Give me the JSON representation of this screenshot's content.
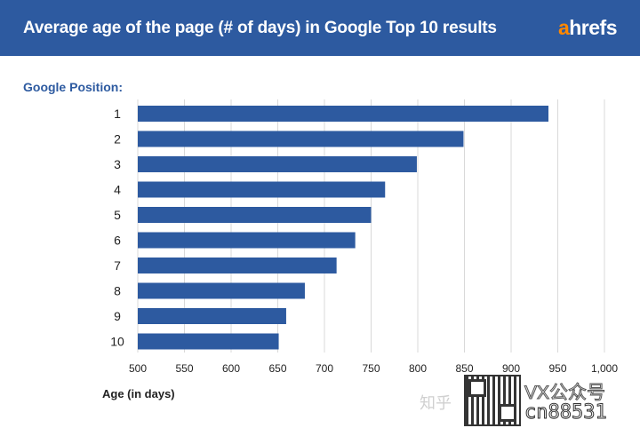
{
  "header": {
    "title": "Average age of the page (# of days) in Google Top 10 results",
    "logo_a": "a",
    "logo_rest": "hrefs"
  },
  "colors": {
    "header_bg": "#2d5aa0",
    "bar": "#2d5aa0",
    "logo_accent": "#ff8800",
    "grid": "#d9d9d9"
  },
  "watermark": {
    "zhihu": "知乎",
    "vx": "VX公众号",
    "cn": "cn88531"
  },
  "chart_data": {
    "type": "bar",
    "orientation": "horizontal",
    "ylabel": "Google Position:",
    "xlabel": "Age (in days)",
    "categories": [
      "1",
      "2",
      "3",
      "4",
      "5",
      "6",
      "7",
      "8",
      "9",
      "10"
    ],
    "values": [
      940,
      849,
      799,
      765,
      750,
      733,
      713,
      679,
      659,
      651
    ],
    "xlim": [
      500,
      1000
    ],
    "xticks": [
      500,
      550,
      600,
      650,
      700,
      750,
      800,
      850,
      900,
      950,
      1000
    ],
    "xtick_labels": [
      "500",
      "550",
      "600",
      "650",
      "700",
      "750",
      "800",
      "850",
      "900",
      "950",
      "1,000"
    ],
    "grid": "vertical",
    "legend": "none"
  }
}
